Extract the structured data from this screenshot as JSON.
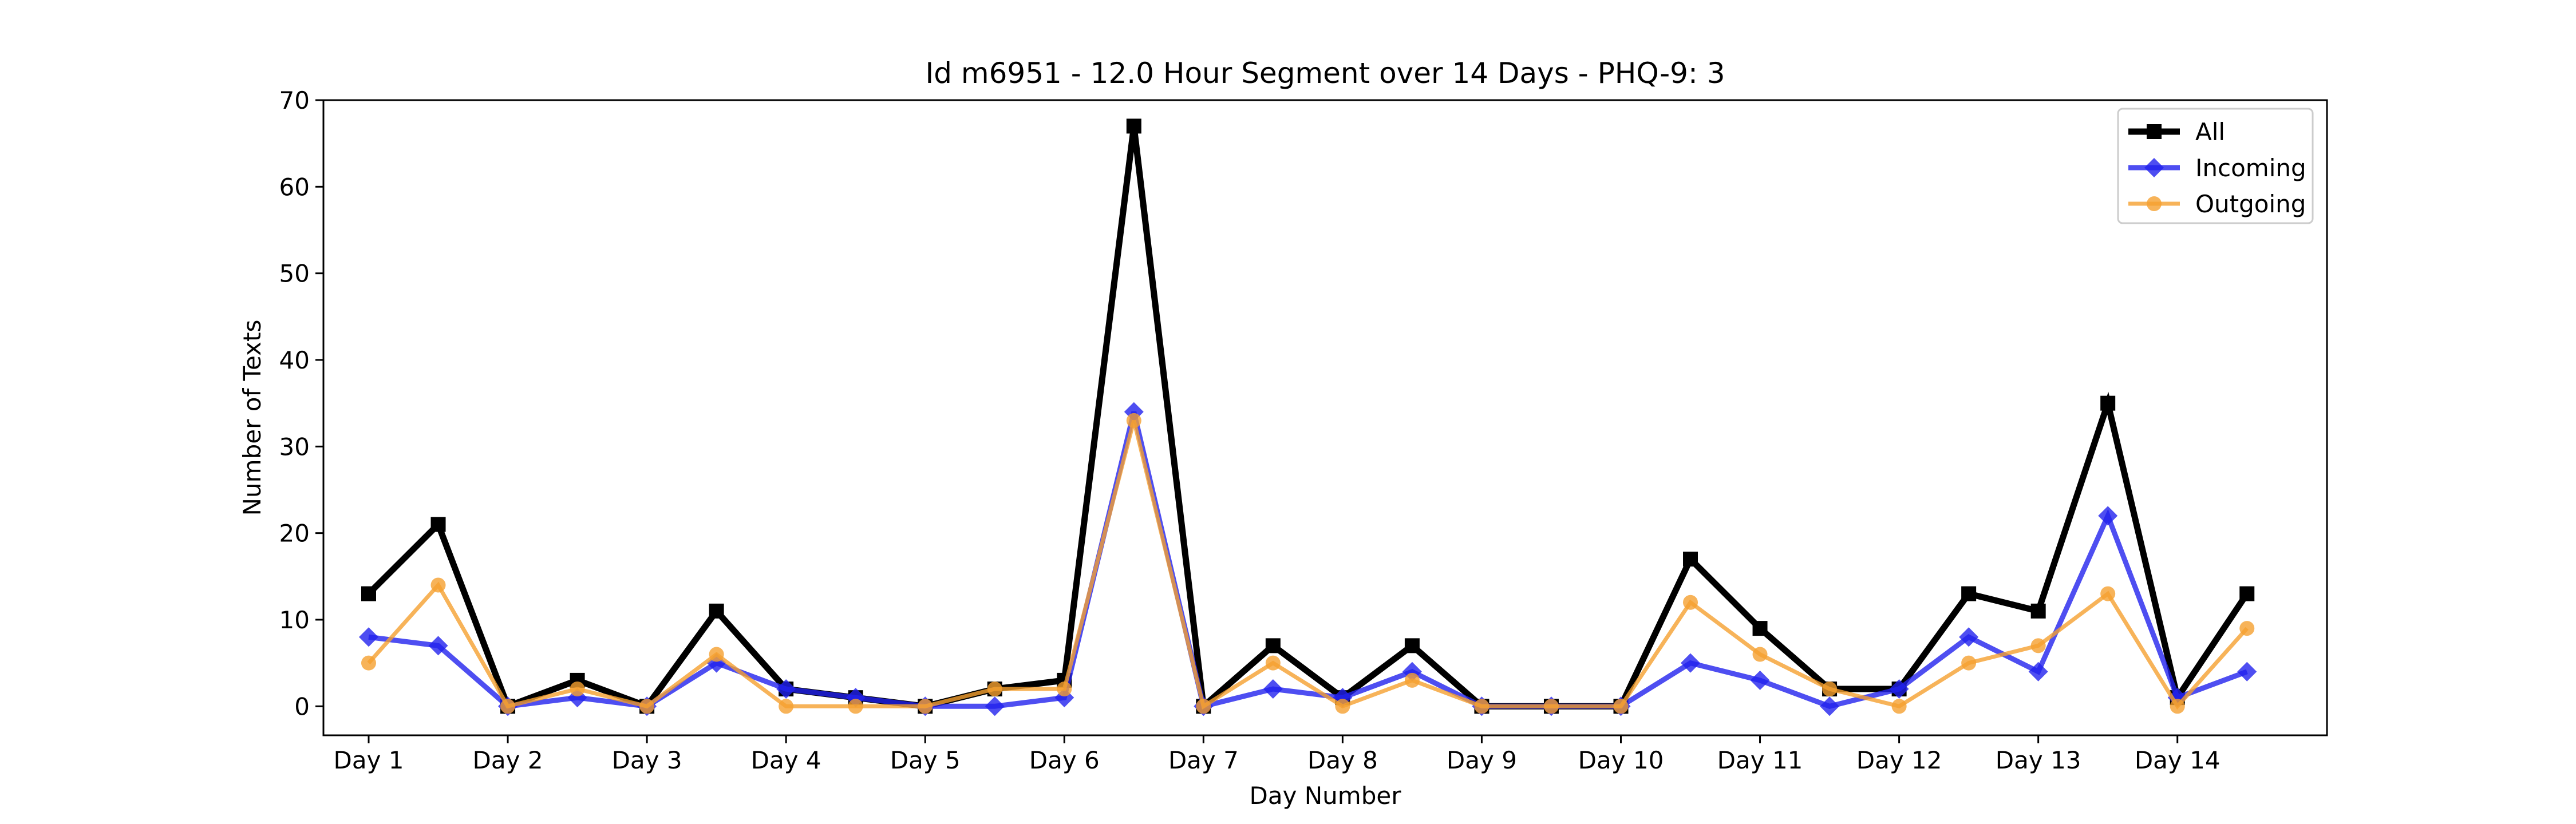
{
  "chart_data": {
    "type": "line",
    "title": "Id m6951 - 12.0 Hour Segment over 14 Days - PHQ-9: 3",
    "xlabel": "Day Number",
    "ylabel": "Number of Texts",
    "ylim": [
      -3.35,
      70
    ],
    "xlim": [
      -0.65,
      28.15
    ],
    "yticks": [
      0,
      10,
      20,
      30,
      40,
      50,
      60,
      70
    ],
    "xticks": [
      {
        "pos": 0,
        "label": "Day 1"
      },
      {
        "pos": 2,
        "label": "Day 2"
      },
      {
        "pos": 4,
        "label": "Day 3"
      },
      {
        "pos": 6,
        "label": "Day 4"
      },
      {
        "pos": 8,
        "label": "Day 5"
      },
      {
        "pos": 10,
        "label": "Day 6"
      },
      {
        "pos": 12,
        "label": "Day 7"
      },
      {
        "pos": 14,
        "label": "Day 8"
      },
      {
        "pos": 16,
        "label": "Day 9"
      },
      {
        "pos": 18,
        "label": "Day 10"
      },
      {
        "pos": 20,
        "label": "Day 11"
      },
      {
        "pos": 22,
        "label": "Day 12"
      },
      {
        "pos": 24,
        "label": "Day 13"
      },
      {
        "pos": 26,
        "label": "Day 14"
      }
    ],
    "grid": false,
    "legend_position": "top-right",
    "series": [
      {
        "name": "All",
        "color": "#000000",
        "marker": "square",
        "values": [
          13,
          21,
          0,
          3,
          0,
          11,
          2,
          1,
          0,
          2,
          3,
          67,
          0,
          7,
          1,
          7,
          0,
          0,
          0,
          17,
          9,
          2,
          2,
          13,
          11,
          35,
          1,
          13
        ]
      },
      {
        "name": "Incoming",
        "color": "#2222ee",
        "marker": "diamond",
        "values": [
          8,
          7,
          0,
          1,
          0,
          5,
          2,
          1,
          0,
          0,
          1,
          34,
          0,
          2,
          1,
          4,
          0,
          0,
          0,
          5,
          3,
          0,
          2,
          8,
          4,
          22,
          1,
          4
        ]
      },
      {
        "name": "Outgoing",
        "color": "#f5a030",
        "marker": "circle",
        "values": [
          5,
          14,
          0,
          2,
          0,
          6,
          0,
          0,
          0,
          2,
          2,
          33,
          0,
          5,
          0,
          3,
          0,
          0,
          0,
          12,
          6,
          2,
          0,
          5,
          7,
          13,
          0,
          9
        ]
      }
    ]
  }
}
